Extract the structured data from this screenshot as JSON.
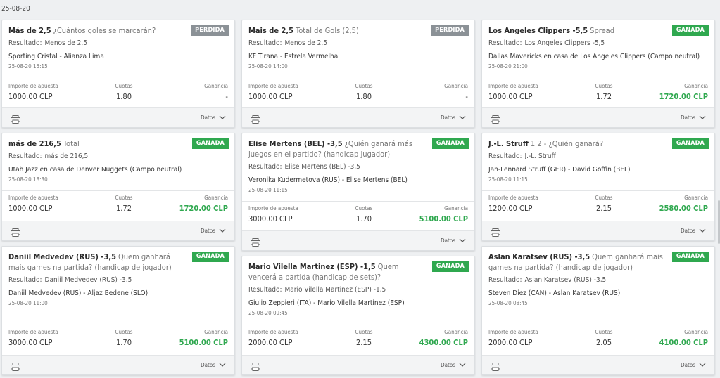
{
  "date_header": "25-08-20",
  "labels": {
    "result": "Resultado:",
    "stake": "Importe de apuesta",
    "odds": "Cuotas",
    "winnings": "Ganancia",
    "details": "Datos"
  },
  "colors": {
    "won": "#2fa84f",
    "lost": "#8b9196"
  },
  "bets": [
    {
      "selection": "Más de 2,5",
      "market": "¿Cuántos goles se marcarán?",
      "status": "PERDIDA",
      "result": "Menos de 2,5",
      "event": "Sporting Cristal - Alianza Lima",
      "time": "25-08-20 15:15",
      "stake": "1000.00 CLP",
      "odds": "1.80",
      "winnings": "-"
    },
    {
      "selection": "Mais de 2,5",
      "market": "Total de Gols (2,5)",
      "status": "PERDIDA",
      "result": "Menos de 2,5",
      "event": "KF Tirana - Estrela Vermelha",
      "time": "25-08-20 14:00",
      "stake": "1000.00 CLP",
      "odds": "1.80",
      "winnings": "-"
    },
    {
      "selection": "Los Angeles Clippers -5,5",
      "market": "Spread",
      "status": "GANADA",
      "result": "Los Angeles Clippers -5,5",
      "event": "Dallas Mavericks en casa de Los Angeles Clippers (Campo neutral)",
      "time": "25-08-20 21:00",
      "stake": "1000.00 CLP",
      "odds": "1.72",
      "winnings": "1720.00 CLP"
    },
    {
      "selection": "más de 216,5",
      "market": "Total",
      "status": "GANADA",
      "result": "más de 216,5",
      "event": "Utah Jazz en casa de Denver Nuggets (Campo neutral)",
      "time": "25-08-20 18:30",
      "stake": "1000.00 CLP",
      "odds": "1.72",
      "winnings": "1720.00 CLP"
    },
    {
      "selection": "Elise Mertens (BEL) -3,5",
      "market": "¿Quién ganará más juegos en el partido? (handicap jugador)",
      "status": "GANADA",
      "result": "Elise Mertens (BEL) -3,5",
      "event": "Veronika Kudermetova (RUS) - Elise Mertens (BEL)",
      "time": "25-08-20 11:15",
      "stake": "3000.00 CLP",
      "odds": "1.70",
      "winnings": "5100.00 CLP"
    },
    {
      "selection": "J.-L. Struff",
      "market": "1 2 - ¿Quién ganará?",
      "status": "GANADA",
      "result": "J.-L. Struff",
      "event": "Jan-Lennard Struff (GER) - David Goffin (BEL)",
      "time": "25-08-20 11:15",
      "stake": "1200.00 CLP",
      "odds": "2.15",
      "winnings": "2580.00 CLP"
    },
    {
      "selection": "Daniil Medvedev (RUS) -3,5",
      "market": "Quem ganhará mais games na partida? (handicap de jogador)",
      "status": "GANADA",
      "result": "Daniil Medvedev (RUS) -3,5",
      "event": "Daniil Medvedev (RUS) - Aljaz Bedene (SLO)",
      "time": "25-08-20 11:00",
      "stake": "3000.00 CLP",
      "odds": "1.70",
      "winnings": "5100.00 CLP"
    },
    {
      "selection": "Mario Vilella Martinez (ESP) -1,5",
      "market": "Quem vencerá a partida (handicap de sets)?",
      "status": "GANADA",
      "result": "Mario Vilella Martinez (ESP) -1,5",
      "event": "Giulio Zeppieri (ITA) - Mario Vilella Martinez (ESP)",
      "time": "25-08-20 09:45",
      "stake": "2000.00 CLP",
      "odds": "2.15",
      "winnings": "4300.00 CLP"
    },
    {
      "selection": "Aslan Karatsev (RUS) -3,5",
      "market": "Quem ganhará mais games na partida? (handicap de jogador)",
      "status": "GANADA",
      "result": "Aslan Karatsev (RUS) -3,5",
      "event": "Steven Diez (CAN) - Aslan Karatsev (RUS)",
      "time": "25-08-20 08:45",
      "stake": "2000.00 CLP",
      "odds": "2.05",
      "winnings": "4100.00 CLP"
    }
  ]
}
